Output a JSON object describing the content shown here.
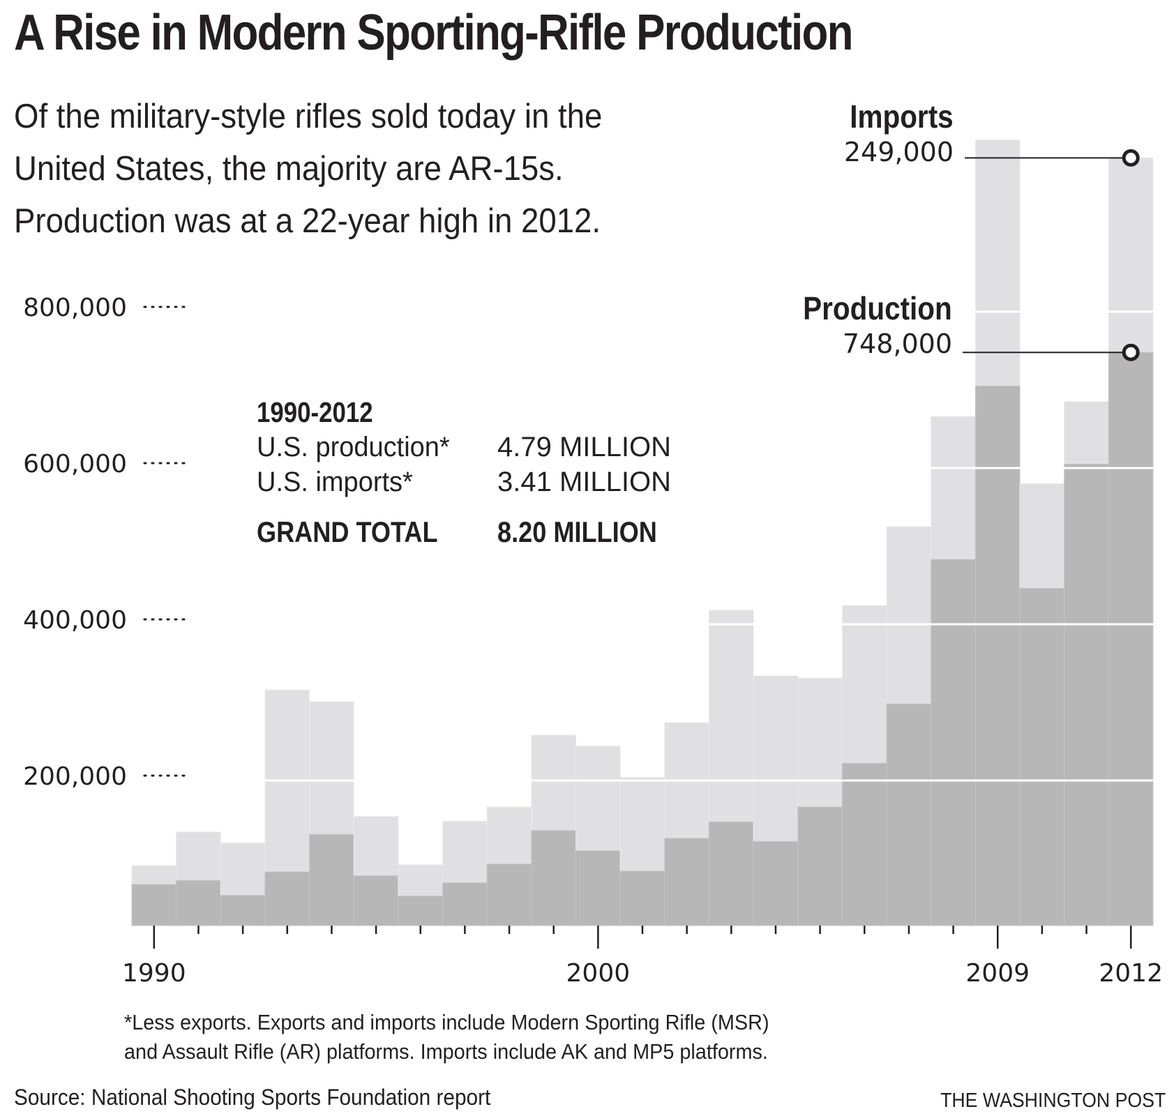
{
  "header": {
    "title": "A Rise in Modern Sporting-Rifle Production",
    "subtitle_lines": [
      "Of the military-style rifles sold today in the",
      "United States, the majority are AR-15s.",
      "Production was at a 22-year high in 2012."
    ]
  },
  "stats": {
    "heading": "1990-2012",
    "rows": [
      {
        "label": "U.S. production*",
        "value": "4.79 MILLION"
      },
      {
        "label": "U.S. imports*",
        "value": "3.41 MILLION"
      }
    ],
    "total": {
      "label": "GRAND TOTAL",
      "value": "8.20 MILLION"
    }
  },
  "annotations": {
    "imports": {
      "title": "Imports",
      "value": "249,000"
    },
    "production": {
      "title": "Production",
      "value": "748,000"
    }
  },
  "footnote_lines": [
    "*Less exports. Exports and imports include Modern Sporting Rifle (MSR)",
    "and Assault Rifle (AR) platforms. Imports include AK and MP5 platforms."
  ],
  "source": "Source: National Shooting Sports Foundation report",
  "credit": "THE WASHINGTON POST",
  "colors": {
    "production": "#b7b7b7",
    "imports": "#e0e0e2",
    "text": "#231f20",
    "gridline": "#ffffff"
  },
  "chart_data": {
    "type": "bar",
    "stacked": true,
    "title": "A Rise in Modern Sporting-Rifle Production",
    "xlabel": "",
    "ylabel": "",
    "categories": [
      "1990",
      "1991",
      "1992",
      "1993",
      "1994",
      "1995",
      "1996",
      "1997",
      "1998",
      "1999",
      "2000",
      "2001",
      "2002",
      "2003",
      "2004",
      "2005",
      "2006",
      "2007",
      "2008",
      "2009",
      "2010",
      "2011",
      "2012"
    ],
    "series": [
      {
        "name": "Production",
        "values": [
          67000,
          72000,
          53000,
          83000,
          131000,
          78000,
          52000,
          69000,
          93000,
          136000,
          110000,
          84000,
          126000,
          147000,
          122000,
          166000,
          222000,
          298000,
          483000,
          705000,
          446000,
          605000,
          748000
        ]
      },
      {
        "name": "Imports",
        "values": [
          24000,
          62000,
          67000,
          233000,
          170000,
          76000,
          40000,
          79000,
          73000,
          122000,
          134000,
          120000,
          148000,
          271000,
          212000,
          165000,
          202000,
          227000,
          183000,
          315000,
          134000,
          80000,
          249000
        ]
      }
    ],
    "yticks": [
      200000,
      400000,
      600000,
      800000
    ],
    "ytick_labels": [
      "200,000",
      "400,000",
      "600,000",
      "800,000"
    ],
    "xtick_labels": [
      "1990",
      "2000",
      "2009",
      "2012"
    ],
    "ylim": [
      0,
      1020000
    ],
    "grid": true,
    "legend": "direct-labels top-right"
  }
}
